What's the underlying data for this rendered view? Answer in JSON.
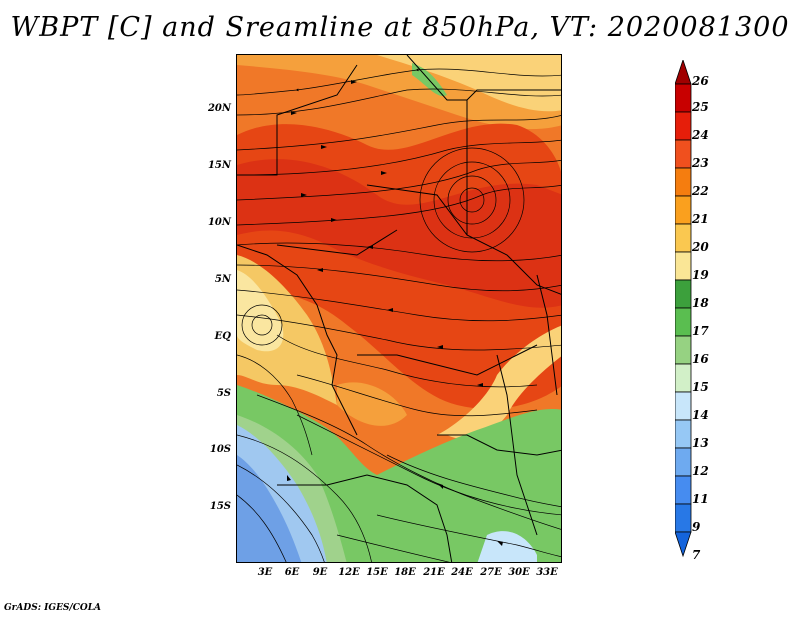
{
  "title": "WBPT [C] and Sreamline at 850hPa, VT: 2020081300",
  "footer": "GrADS: IGES/COLA",
  "variable": "WBPT",
  "units": "C",
  "level": "850hPa",
  "valid_time": "2020081300",
  "lat_labels": [
    "20N",
    "15N",
    "10N",
    "5N",
    "EQ",
    "5S",
    "10S",
    "15S"
  ],
  "lon_labels": [
    "3E",
    "6E",
    "9E",
    "12E",
    "15E",
    "18E",
    "21E",
    "24E",
    "27E",
    "30E",
    "33E"
  ],
  "colorbar": {
    "labels": [
      "26",
      "25",
      "24",
      "23",
      "22",
      "21",
      "20",
      "19",
      "18",
      "17",
      "16",
      "15",
      "14",
      "13",
      "12",
      "11",
      "9",
      "7"
    ],
    "colors": [
      "#a00000",
      "#c80000",
      "#e61e0a",
      "#f0501e",
      "#f57d0f",
      "#faa01e",
      "#fac850",
      "#fae696",
      "#3ca03c",
      "#5abe50",
      "#96d282",
      "#d2f0c8",
      "#c8e6fa",
      "#96c8f5",
      "#6eaaf0",
      "#468cf0",
      "#2878e6",
      "#1464dc"
    ]
  },
  "colors": {
    "hot": "#dc3c14",
    "warm": "#f07828",
    "mild": "#f5b450",
    "cool_green": "#78c864",
    "cool_blue": "#78aaf0"
  }
}
